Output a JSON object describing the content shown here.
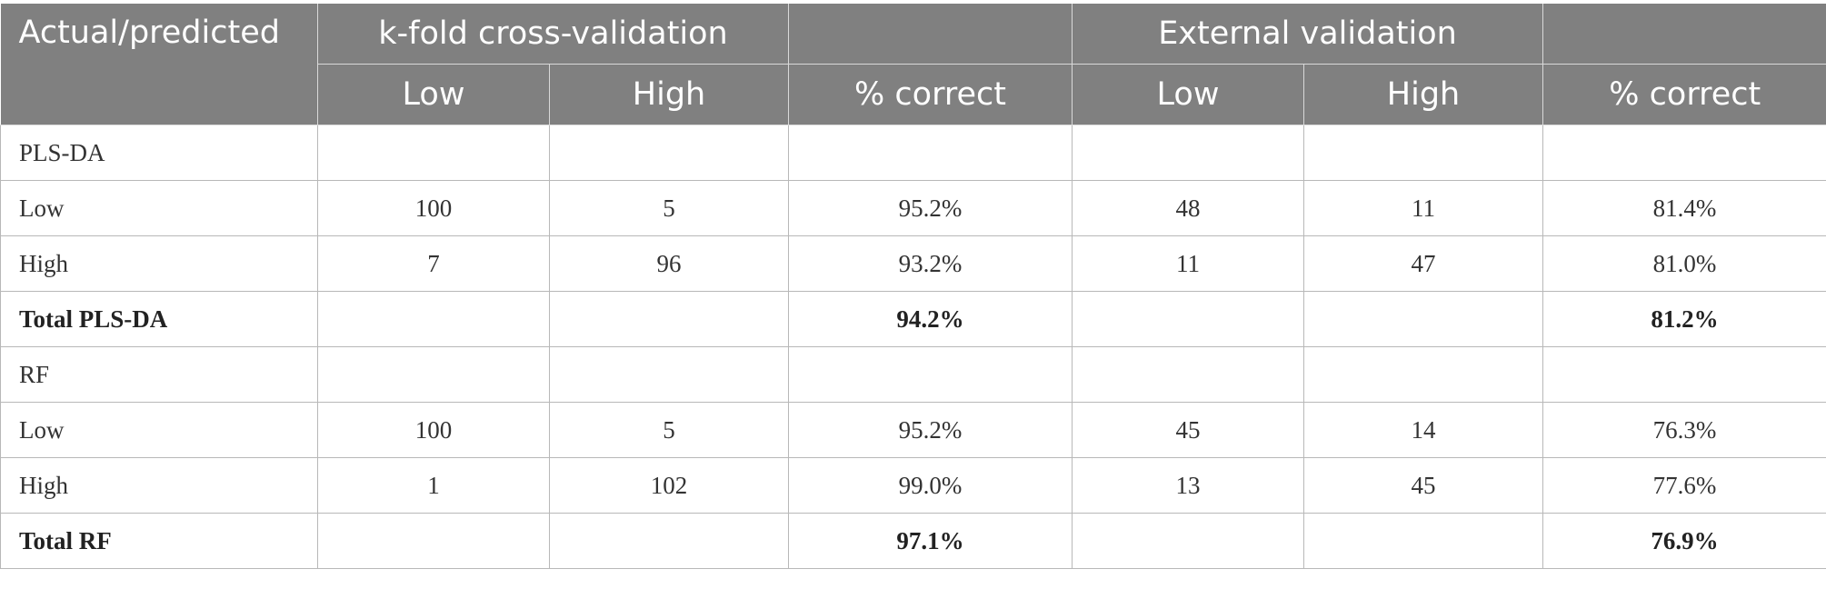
{
  "table": {
    "header": {
      "actual_predicted": "Actual/predicted",
      "group1": "k-fold cross-validation",
      "group2": "External validation",
      "low": "Low",
      "high": "High",
      "pct_correct": "% correct"
    },
    "rows": [
      {
        "label": "PLS-DA",
        "kf_low": "",
        "kf_high": "",
        "kf_pct": "",
        "ev_low": "",
        "ev_high": "",
        "ev_pct": "",
        "bold": false
      },
      {
        "label": "Low",
        "kf_low": "100",
        "kf_high": "5",
        "kf_pct": "95.2%",
        "ev_low": "48",
        "ev_high": "11",
        "ev_pct": "81.4%",
        "bold": false
      },
      {
        "label": "High",
        "kf_low": "7",
        "kf_high": "96",
        "kf_pct": "93.2%",
        "ev_low": "11",
        "ev_high": "47",
        "ev_pct": "81.0%",
        "bold": false
      },
      {
        "label": "Total PLS-DA",
        "kf_low": "",
        "kf_high": "",
        "kf_pct": "94.2%",
        "ev_low": "",
        "ev_high": "",
        "ev_pct": "81.2%",
        "bold": true
      },
      {
        "label": "RF",
        "kf_low": "",
        "kf_high": "",
        "kf_pct": "",
        "ev_low": "",
        "ev_high": "",
        "ev_pct": "",
        "bold": false
      },
      {
        "label": "Low",
        "kf_low": "100",
        "kf_high": "5",
        "kf_pct": "95.2%",
        "ev_low": "45",
        "ev_high": "14",
        "ev_pct": "76.3%",
        "bold": false
      },
      {
        "label": "High",
        "kf_low": "1",
        "kf_high": "102",
        "kf_pct": "99.0%",
        "ev_low": "13",
        "ev_high": "45",
        "ev_pct": "77.6%",
        "bold": false
      },
      {
        "label": "Total RF",
        "kf_low": "",
        "kf_high": "",
        "kf_pct": "97.1%",
        "ev_low": "",
        "ev_high": "",
        "ev_pct": "76.9%",
        "bold": true
      }
    ]
  }
}
